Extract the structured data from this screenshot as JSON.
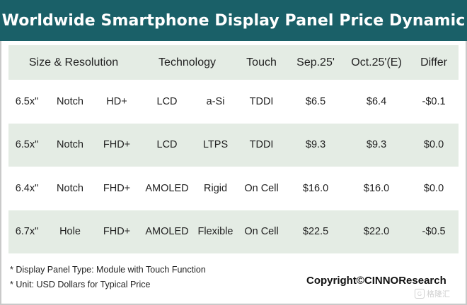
{
  "title": "Worldwide Smartphone Display Panel Price Dynamic",
  "header": {
    "size_resolution": "Size & Resolution",
    "technology": "Technology",
    "touch": "Touch",
    "sep25": "Sep.25'",
    "oct25": "Oct.25'(E)",
    "differ": "Differ"
  },
  "rows": [
    {
      "size": "6.5x\"",
      "form": "Notch",
      "resolution": "HD+",
      "display": "LCD",
      "backplane": "a-Si",
      "touch": "TDDI",
      "sep": "$6.5",
      "oct": "$6.4",
      "diff": "-$0.1"
    },
    {
      "size": "6.5x\"",
      "form": "Notch",
      "resolution": "FHD+",
      "display": "LCD",
      "backplane": "LTPS",
      "touch": "TDDI",
      "sep": "$9.3",
      "oct": "$9.3",
      "diff": "$0.0"
    },
    {
      "size": "6.4x\"",
      "form": "Notch",
      "resolution": "FHD+",
      "display": "AMOLED",
      "backplane": "Rigid",
      "touch": "On Cell",
      "sep": "$16.0",
      "oct": "$16.0",
      "diff": "$0.0"
    },
    {
      "size": "6.7x\"",
      "form": "Hole",
      "resolution": "FHD+",
      "display": "AMOLED",
      "backplane": "Flexible",
      "touch": "On Cell",
      "sep": "$22.5",
      "oct": "$22.0",
      "diff": "-$0.5"
    }
  ],
  "notes": [
    "* Display Panel Type: Module with Touch Function",
    "* Unit: USD Dollars for Typical Price"
  ],
  "copyright": "Copyright©CINNOResearch",
  "watermark": "格隆汇",
  "colors": {
    "title_bg": "#1a6068",
    "band": "#e4ece4"
  }
}
